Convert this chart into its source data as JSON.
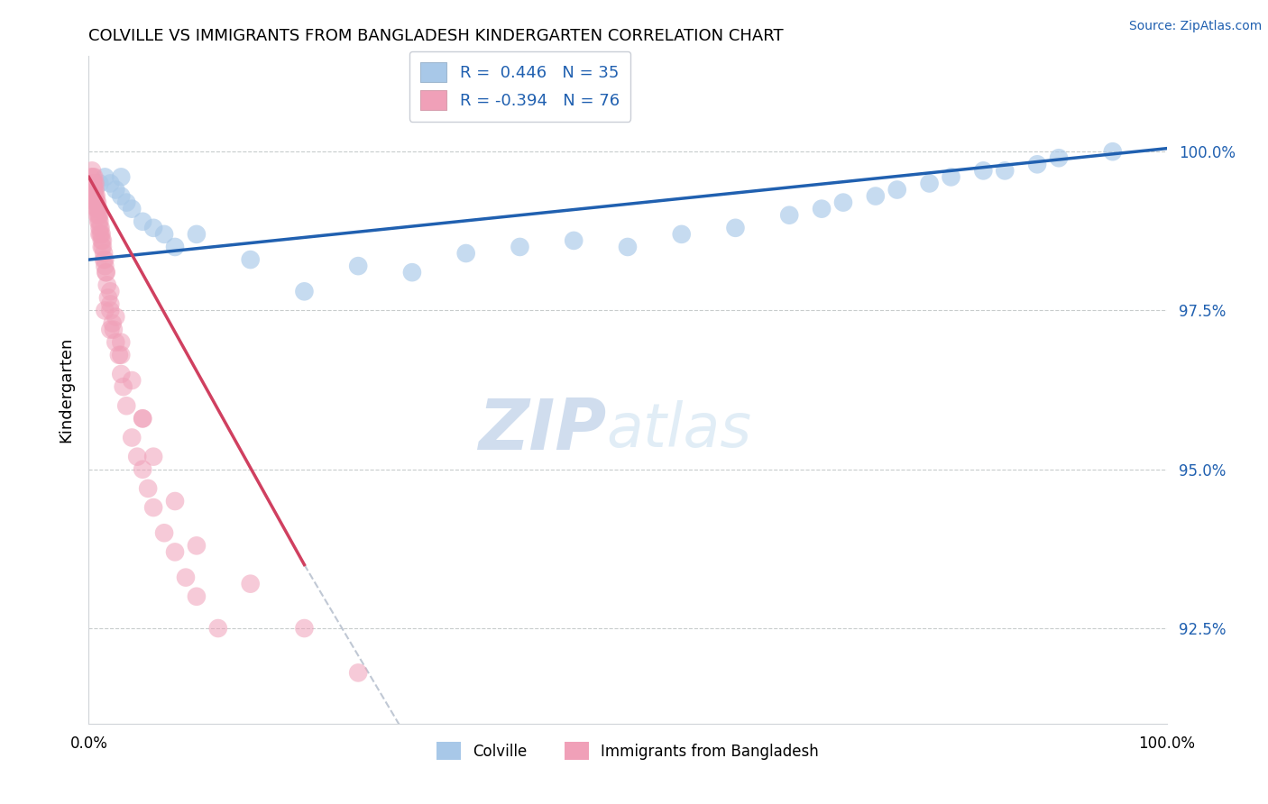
{
  "title": "COLVILLE VS IMMIGRANTS FROM BANGLADESH KINDERGARTEN CORRELATION CHART",
  "source": "Source: ZipAtlas.com",
  "ylabel": "Kindergarten",
  "xlim": [
    0.0,
    100.0
  ],
  "ylim": [
    91.0,
    101.5
  ],
  "ytick_vals": [
    92.5,
    95.0,
    97.5,
    100.0
  ],
  "ytick_labels": [
    "92.5%",
    "95.0%",
    "97.5%",
    "100.0%"
  ],
  "xtick_vals": [
    0.0,
    100.0
  ],
  "xtick_labels": [
    "0.0%",
    "100.0%"
  ],
  "blue_color": "#A8C8E8",
  "pink_color": "#F0A0B8",
  "blue_line_color": "#2060B0",
  "pink_line_color": "#D04060",
  "dashed_line_color": "#C0C8D4",
  "tick_label_color": "#2060B0",
  "watermark_text": "ZIPatlas",
  "watermark_color": "#D8E4F0",
  "legend_R_blue": "R =  0.446   N = 35",
  "legend_R_pink": "R = -0.394   N = 76",
  "legend_blue_label": "Colville",
  "legend_pink_label": "Immigrants from Bangladesh",
  "blue_scatter_x": [
    1.0,
    1.5,
    2.0,
    2.5,
    3.0,
    3.0,
    3.5,
    4.0,
    5.0,
    6.0,
    7.0,
    8.0,
    10.0,
    15.0,
    20.0,
    25.0,
    30.0,
    35.0,
    40.0,
    45.0,
    50.0,
    55.0,
    60.0,
    65.0,
    68.0,
    70.0,
    73.0,
    75.0,
    78.0,
    80.0,
    83.0,
    85.0,
    88.0,
    90.0,
    95.0
  ],
  "blue_scatter_y": [
    99.5,
    99.6,
    99.5,
    99.4,
    99.3,
    99.6,
    99.2,
    99.1,
    98.9,
    98.8,
    98.7,
    98.5,
    98.7,
    98.3,
    97.8,
    98.2,
    98.1,
    98.4,
    98.5,
    98.6,
    98.5,
    98.7,
    98.8,
    99.0,
    99.1,
    99.2,
    99.3,
    99.4,
    99.5,
    99.6,
    99.7,
    99.7,
    99.8,
    99.9,
    100.0
  ],
  "pink_scatter_x": [
    0.2,
    0.3,
    0.3,
    0.4,
    0.4,
    0.5,
    0.5,
    0.5,
    0.6,
    0.6,
    0.6,
    0.7,
    0.7,
    0.8,
    0.8,
    0.9,
    0.9,
    1.0,
    1.0,
    1.0,
    1.1,
    1.1,
    1.2,
    1.2,
    1.3,
    1.3,
    1.4,
    1.5,
    1.5,
    1.6,
    1.7,
    1.8,
    2.0,
    2.0,
    2.2,
    2.3,
    2.5,
    2.8,
    3.0,
    3.2,
    3.5,
    4.0,
    4.5,
    5.0,
    5.5,
    6.0,
    7.0,
    8.0,
    9.0,
    10.0,
    12.0,
    0.4,
    0.5,
    0.6,
    0.7,
    0.8,
    0.9,
    1.0,
    1.2,
    1.4,
    1.6,
    2.0,
    2.5,
    3.0,
    4.0,
    5.0,
    6.0,
    8.0,
    10.0,
    15.0,
    20.0,
    25.0,
    1.5,
    2.0,
    3.0,
    5.0
  ],
  "pink_scatter_y": [
    99.6,
    99.5,
    99.7,
    99.5,
    99.6,
    99.4,
    99.5,
    99.6,
    99.3,
    99.4,
    99.5,
    99.2,
    99.3,
    99.1,
    99.2,
    99.0,
    99.1,
    98.9,
    99.0,
    98.8,
    98.7,
    98.8,
    98.6,
    98.7,
    98.5,
    98.6,
    98.4,
    98.3,
    98.2,
    98.1,
    97.9,
    97.7,
    97.6,
    97.5,
    97.3,
    97.2,
    97.0,
    96.8,
    96.5,
    96.3,
    96.0,
    95.5,
    95.2,
    95.0,
    94.7,
    94.4,
    94.0,
    93.7,
    93.3,
    93.0,
    92.5,
    99.4,
    99.3,
    99.2,
    99.1,
    99.0,
    98.9,
    98.7,
    98.5,
    98.3,
    98.1,
    97.8,
    97.4,
    97.0,
    96.4,
    95.8,
    95.2,
    94.5,
    93.8,
    93.2,
    92.5,
    91.8,
    97.5,
    97.2,
    96.8,
    95.8
  ],
  "blue_line_x": [
    0.0,
    100.0
  ],
  "blue_line_y": [
    98.3,
    100.05
  ],
  "pink_line_x": [
    0.0,
    20.0
  ],
  "pink_line_y": [
    99.6,
    93.5
  ],
  "dashed_line_x": [
    20.0,
    55.0
  ],
  "dashed_line_y": [
    93.5,
    83.5
  ]
}
